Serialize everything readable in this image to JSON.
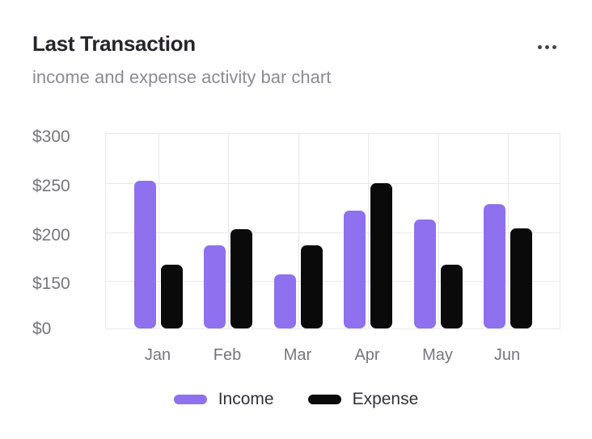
{
  "header": {
    "title": "Last Transaction",
    "subtitle": "income and expense activity bar chart",
    "menu_icon": "ellipsis-icon"
  },
  "colors": {
    "income": "#8F70EE",
    "expense": "#0A0A0A",
    "grid": "#E9E8EE",
    "title_text": "#27242B",
    "subtitle_text": "#8C8B93",
    "axis_text": "#76757E",
    "legend_text": "#333238",
    "background": "#FFFFFF"
  },
  "chart_data": {
    "type": "bar",
    "title": "Last Transaction",
    "subtitle": "income and expense activity bar chart",
    "categories": [
      "Jan",
      "Feb",
      "Mar",
      "Apr",
      "May",
      "Jun"
    ],
    "series": [
      {
        "name": "Income",
        "color_key": "income",
        "values": [
          251,
          185,
          155,
          220,
          211,
          227
        ]
      },
      {
        "name": "Expense",
        "color_key": "expense",
        "values": [
          165,
          201,
          185,
          248,
          165,
          202
        ]
      }
    ],
    "y_ticks": {
      "values": [
        0,
        150,
        200,
        250,
        300
      ],
      "labels": [
        "$0",
        "$150",
        "$200",
        "$250",
        "$300"
      ]
    },
    "y_axis_note": "tick lines equally spaced; segment below $150 is compressed (non-linear)",
    "ylim": [
      0,
      300
    ],
    "currency_prefix": "$",
    "grid": true,
    "legend_position": "bottom"
  },
  "legend": {
    "items": [
      {
        "label": "Income",
        "color_key": "income"
      },
      {
        "label": "Expense",
        "color_key": "expense"
      }
    ]
  }
}
